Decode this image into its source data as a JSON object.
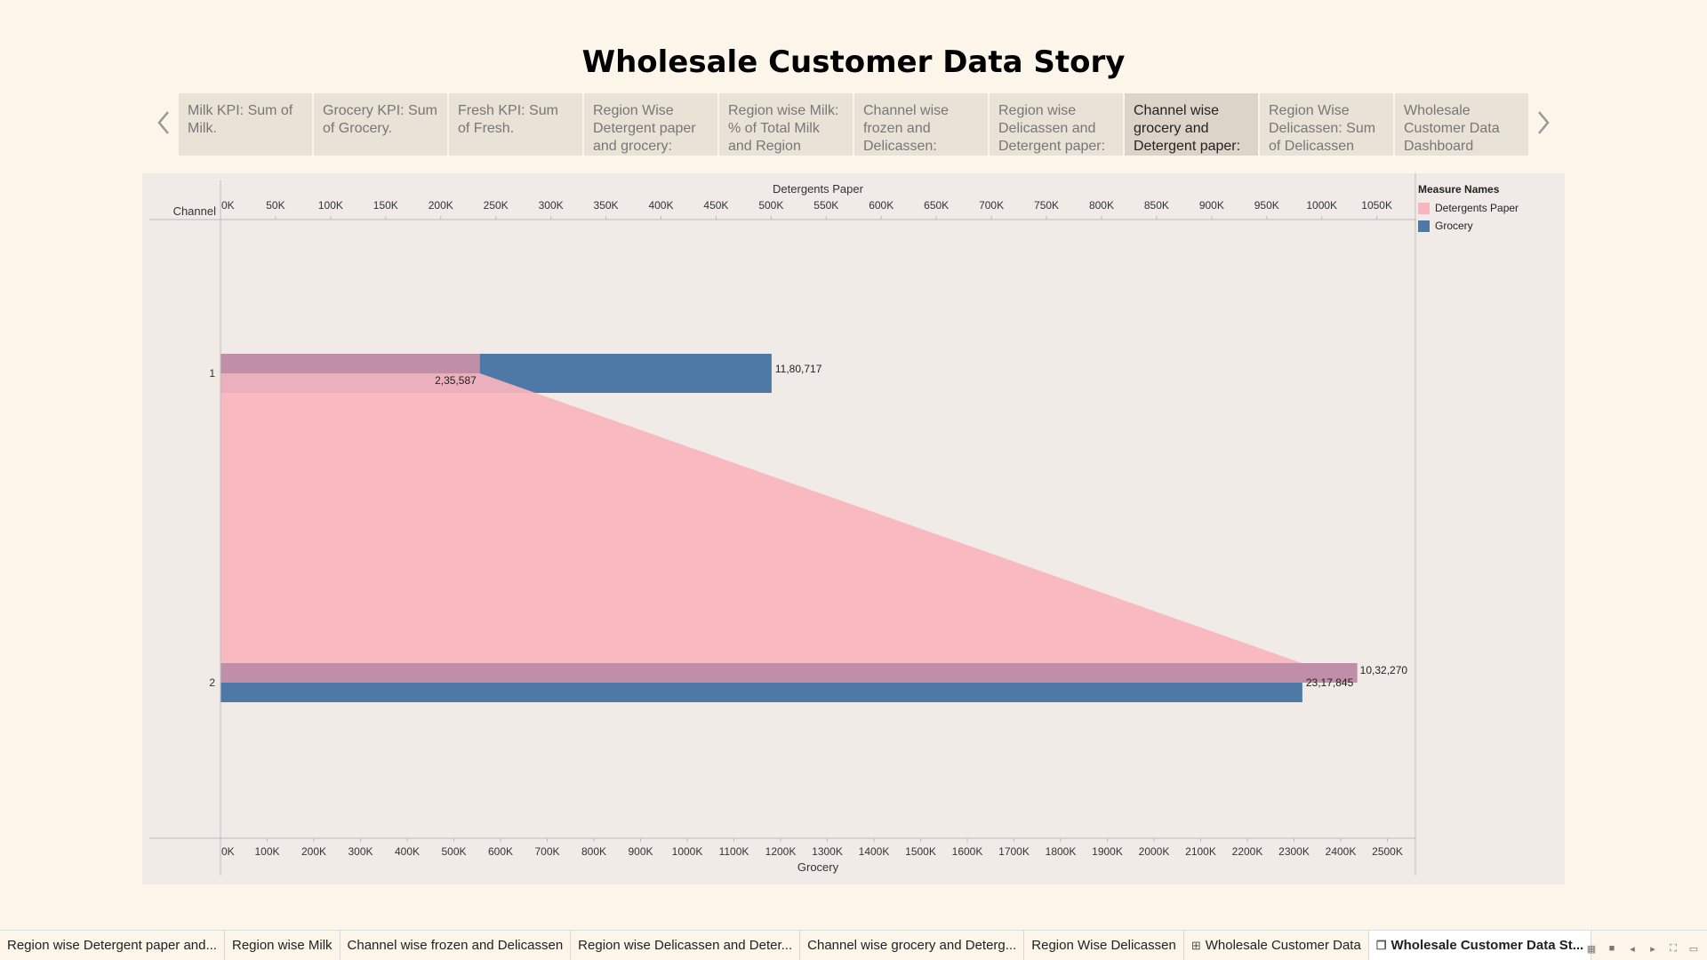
{
  "story": {
    "title": "Wholesale Customer Data Story"
  },
  "storypoints": [
    {
      "label": "Milk KPI: Sum of Milk."
    },
    {
      "label": "Grocery KPI: Sum of Grocery."
    },
    {
      "label": "Fresh KPI: Sum of Fresh."
    },
    {
      "label": "Region Wise Detergent paper and grocery:"
    },
    {
      "label": "Region wise Milk: % of Total Milk and Region"
    },
    {
      "label": "Channel wise frozen and Delicassen:"
    },
    {
      "label": "Region wise Delicassen and Detergent paper:"
    },
    {
      "label": "Channel wise grocery and Detergent paper:"
    },
    {
      "label": "Region Wise Delicassen: Sum of Delicassen"
    },
    {
      "label": "Wholesale Customer Data Dashboard"
    }
  ],
  "nav": {
    "prev_icon": "chevron-left-icon",
    "next_icon": "chevron-right-icon"
  },
  "legend": {
    "title": "Measure Names",
    "items": [
      {
        "label": "Detergents Paper",
        "color": "#f9b5bd"
      },
      {
        "label": "Grocery",
        "color": "#4e79a7"
      }
    ]
  },
  "chart_data": {
    "type": "bar",
    "row_header": "Channel",
    "categories": [
      "1",
      "2"
    ],
    "series": [
      {
        "name": "Detergents Paper",
        "values": [
          235587,
          1032270
        ],
        "labels": [
          "2,35,587",
          "10,32,270"
        ],
        "color": "#f9b5bd",
        "axis": "top"
      },
      {
        "name": "Grocery",
        "values": [
          1180717,
          2317845
        ],
        "labels": [
          "11,80,717",
          "23,17,845"
        ],
        "color": "#4e79a7",
        "axis": "bottom"
      }
    ],
    "top_axis": {
      "label": "Detergents Paper",
      "range": [
        0,
        1085000
      ],
      "ticks": [
        0,
        50000,
        100000,
        150000,
        200000,
        250000,
        300000,
        350000,
        400000,
        450000,
        500000,
        550000,
        600000,
        650000,
        700000,
        750000,
        800000,
        850000,
        900000,
        950000,
        1000000,
        1050000
      ],
      "tick_labels": [
        "0K",
        "50K",
        "100K",
        "150K",
        "200K",
        "250K",
        "300K",
        "350K",
        "400K",
        "450K",
        "500K",
        "550K",
        "600K",
        "650K",
        "700K",
        "750K",
        "800K",
        "850K",
        "900K",
        "950K",
        "1000K",
        "1050K"
      ]
    },
    "bottom_axis": {
      "label": "Grocery",
      "range": [
        0,
        2560000
      ],
      "ticks": [
        0,
        100000,
        200000,
        300000,
        400000,
        500000,
        600000,
        700000,
        800000,
        900000,
        1000000,
        1100000,
        1200000,
        1300000,
        1400000,
        1500000,
        1600000,
        1700000,
        1800000,
        1900000,
        2000000,
        2100000,
        2200000,
        2300000,
        2400000,
        2500000
      ],
      "tick_labels": [
        "0K",
        "100K",
        "200K",
        "300K",
        "400K",
        "500K",
        "600K",
        "700K",
        "800K",
        "900K",
        "1000K",
        "1100K",
        "1200K",
        "1300K",
        "1400K",
        "1500K",
        "1600K",
        "1700K",
        "1800K",
        "1900K",
        "2000K",
        "2100K",
        "2200K",
        "2300K",
        "2400K",
        "2500K"
      ]
    },
    "grid": false,
    "legend_position": "right"
  },
  "tabs": [
    {
      "label": "Region wise Detergent paper and...",
      "icon": ""
    },
    {
      "label": "Region wise Milk",
      "icon": ""
    },
    {
      "label": "Channel wise frozen and Delicassen",
      "icon": ""
    },
    {
      "label": "Region wise Delicassen and Deter...",
      "icon": ""
    },
    {
      "label": "Channel wise grocery and Deterg...",
      "icon": ""
    },
    {
      "label": "Region Wise Delicassen",
      "icon": ""
    },
    {
      "label": "Wholesale Customer Data",
      "icon": "dashboard-icon"
    },
    {
      "label": "Wholesale Customer Data St...",
      "icon": "story-icon"
    }
  ],
  "window_controls": [
    "grid-view-icon",
    "filmstrip-icon",
    "prev-sheet-icon",
    "next-sheet-icon",
    "fullscreen-icon",
    "present-icon"
  ]
}
